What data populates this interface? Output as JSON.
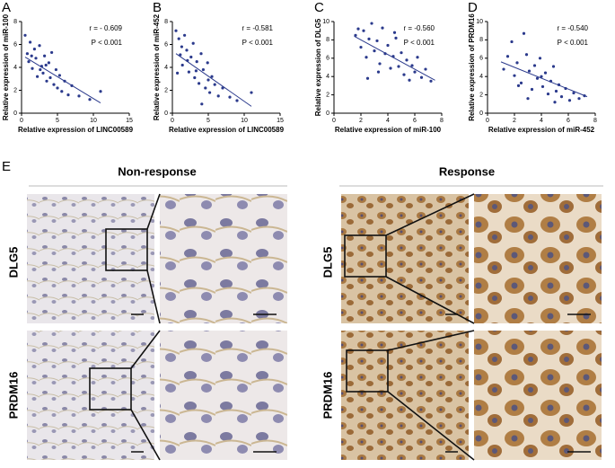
{
  "chart_data": [
    {
      "type": "scatter",
      "panel": "A",
      "xlabel": "Relative expression of LINC00589",
      "ylabel": "Relative expression of miR-100",
      "annotations": [
        "r = - 0.609",
        "P < 0.001"
      ],
      "color": "#2b3a8c",
      "xlim": [
        0,
        15
      ],
      "xticks": [
        0,
        5,
        10,
        15
      ],
      "ylim": [
        0,
        8
      ],
      "yticks": [
        0,
        2,
        4,
        6,
        8
      ],
      "x": [
        0.5,
        0.8,
        1,
        1.2,
        1.5,
        1.8,
        2,
        2.2,
        2.5,
        2.8,
        3,
        3.2,
        3.5,
        3.8,
        4,
        4.2,
        4.5,
        4.8,
        5,
        5.3,
        5.6,
        6,
        6.5,
        7,
        8,
        9.5,
        11,
        1.4,
        2.6,
        3.4
      ],
      "values": [
        6.8,
        5.2,
        4.5,
        6.2,
        3.9,
        5.6,
        4.8,
        3.2,
        5.9,
        4.1,
        3.5,
        5,
        2.8,
        4.4,
        3.1,
        5.3,
        2.5,
        3.8,
        2.2,
        3.3,
        1.9,
        2.8,
        1.6,
        2.4,
        1.5,
        1.2,
        1.9,
        5,
        3.8,
        4.2
      ],
      "trend_line": {
        "x": [
          0.5,
          11
        ],
        "y": [
          4.9,
          0.9
        ]
      }
    },
    {
      "type": "scatter",
      "panel": "B",
      "xlabel": "Relative expression of LINC00589",
      "ylabel": "Relative expression of miR-452",
      "annotations": [
        "r = -0.581",
        "P < 0.001"
      ],
      "color": "#2b3a8c",
      "xlim": [
        0,
        15
      ],
      "xticks": [
        0,
        5,
        10,
        15
      ],
      "ylim": [
        0,
        8
      ],
      "yticks": [
        0,
        2,
        4,
        6,
        8
      ],
      "x": [
        0.5,
        0.9,
        1.1,
        1.4,
        1.7,
        2,
        2.3,
        2.6,
        2.9,
        3.1,
        3.4,
        3.7,
        4,
        4.3,
        4.6,
        4.9,
        5.2,
        5.5,
        5.9,
        6.4,
        7,
        8,
        9,
        11,
        1.3,
        2.1,
        3.3,
        4.1,
        0.7,
        5
      ],
      "values": [
        7.2,
        6.5,
        5.1,
        4.2,
        6.8,
        5.5,
        3.6,
        4.9,
        6.1,
        3.1,
        4.5,
        2.6,
        5.2,
        3.8,
        2.2,
        4.4,
        1.8,
        3.2,
        2.5,
        1.5,
        2.2,
        1.4,
        1.1,
        1.8,
        5.8,
        4.6,
        3.7,
        0.8,
        3.5,
        2.9
      ],
      "trend_line": {
        "x": [
          0.5,
          11
        ],
        "y": [
          5.2,
          0.6
        ]
      }
    },
    {
      "type": "scatter",
      "panel": "C",
      "xlabel": "Relative expression of miR-100",
      "ylabel": "Relative expression of DLG5",
      "annotations": [
        "r = -0.560",
        "P < 0.001"
      ],
      "color": "#2b3a8c",
      "xlim": [
        0,
        8
      ],
      "xticks": [
        0,
        2,
        4,
        6,
        8
      ],
      "ylim": [
        0,
        10
      ],
      "yticks": [
        0,
        2,
        4,
        6,
        8,
        10
      ],
      "x": [
        1.6,
        1.8,
        2,
        2.2,
        2.4,
        2.6,
        2.8,
        3,
        3.2,
        3.4,
        3.6,
        3.8,
        4,
        4.2,
        4.4,
        4.6,
        4.8,
        5,
        5.2,
        5.4,
        5.6,
        5.8,
        6,
        6.2,
        6.5,
        6.8,
        7.2,
        2.5,
        3.3,
        4.5
      ],
      "values": [
        8.5,
        9.2,
        7.2,
        9,
        6.1,
        8.1,
        9.8,
        6.8,
        7.9,
        5.4,
        9.3,
        6.5,
        7.4,
        4.9,
        6.2,
        8.2,
        5.1,
        6.6,
        4.2,
        5.8,
        3.6,
        5.2,
        4.5,
        6.1,
        3.9,
        4.8,
        3.5,
        3.8,
        4.5,
        8.8
      ],
      "trend_line": {
        "x": [
          1.5,
          7.5
        ],
        "y": [
          8.4,
          3.6
        ]
      }
    },
    {
      "type": "scatter",
      "panel": "D",
      "xlabel": "Relative expression of miR-452",
      "ylabel": "Relative expression of PRDM16",
      "annotations": [
        "r = -0.540",
        "P < 0.001"
      ],
      "color": "#2b3a8c",
      "xlim": [
        0,
        8
      ],
      "xticks": [
        0,
        2,
        4,
        6,
        8
      ],
      "ylim": [
        0,
        10
      ],
      "yticks": [
        0,
        2,
        4,
        6,
        8,
        10
      ],
      "x": [
        1.2,
        1.5,
        1.8,
        2,
        2.2,
        2.5,
        2.7,
        2.9,
        3.1,
        3.3,
        3.5,
        3.7,
        3.9,
        4.1,
        4.3,
        4.5,
        4.7,
        4.9,
        5.1,
        5.3,
        5.5,
        5.8,
        6.1,
        6.4,
        6.8,
        7.2,
        3,
        5,
        2.3,
        4
      ],
      "values": [
        4.8,
        6.2,
        7.8,
        4.1,
        5.5,
        3.3,
        8.7,
        6.4,
        4.6,
        2.6,
        5.2,
        3.8,
        6,
        2.9,
        4.4,
        2.1,
        3.5,
        5.1,
        2.4,
        3.1,
        1.8,
        2.7,
        1.4,
        2.2,
        1.6,
        1.9,
        1.6,
        1.2,
        3,
        4
      ],
      "trend_line": {
        "x": [
          1,
          7.4
        ],
        "y": [
          5.6,
          1.8
        ]
      }
    }
  ],
  "tissue_panel": {
    "panel": "E",
    "groups": [
      "Non-response",
      "Response"
    ],
    "rows": [
      "DLG5",
      "PRDM16"
    ]
  }
}
